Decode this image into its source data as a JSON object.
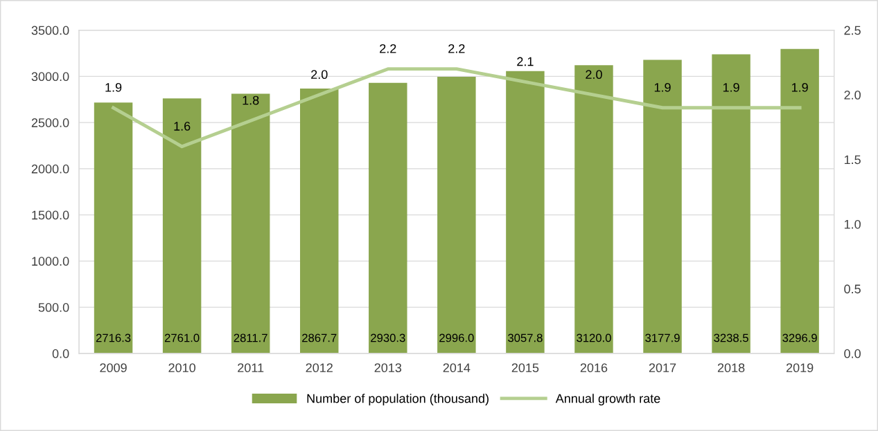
{
  "chart_data": {
    "type": "bar",
    "categories": [
      "2009",
      "2010",
      "2011",
      "2012",
      "2013",
      "2014",
      "2015",
      "2016",
      "2017",
      "2018",
      "2019"
    ],
    "series": [
      {
        "name": "Number of population (thousand)",
        "color": "#8aa64e",
        "values": [
          2716.3,
          2761.0,
          2811.7,
          2867.7,
          2930.3,
          2996.0,
          3057.8,
          3120.0,
          3177.9,
          3238.5,
          3296.9
        ],
        "value_labels": [
          "2716.3",
          "2761.0",
          "2811.7",
          "2867.7",
          "2930.3",
          "2996.0",
          "3057.8",
          "3120.0",
          "3177.9",
          "3238.5",
          "3296.9"
        ]
      },
      {
        "name": "Annual growth rate",
        "type": "line",
        "axis": "y2",
        "color": "#b5cf90",
        "values": [
          1.9,
          1.6,
          1.8,
          2.0,
          2.2,
          2.2,
          2.1,
          2.0,
          1.9,
          1.9,
          1.9
        ],
        "value_labels": [
          "1.9",
          "1.6",
          "1.8",
          "2.0",
          "2.2",
          "2.2",
          "2.1",
          "2.0",
          "1.9",
          "1.9",
          "1.9"
        ]
      }
    ],
    "ylim": [
      0,
      3500
    ],
    "yticks": [
      {
        "value": 0,
        "label": "0.0"
      },
      {
        "value": 500,
        "label": "500.0"
      },
      {
        "value": 1000,
        "label": "1000.0"
      },
      {
        "value": 1500,
        "label": "1500.0"
      },
      {
        "value": 2000,
        "label": "2000.0"
      },
      {
        "value": 2500,
        "label": "2500.0"
      },
      {
        "value": 3000,
        "label": "3000.0"
      },
      {
        "value": 3500,
        "label": "3500.0"
      }
    ],
    "y2lim": [
      0,
      2.5
    ],
    "y2ticks": [
      {
        "value": 0,
        "label": "0.0"
      },
      {
        "value": 0.5,
        "label": "0.5"
      },
      {
        "value": 1.0,
        "label": "1.0"
      },
      {
        "value": 1.5,
        "label": "1.5"
      },
      {
        "value": 2.0,
        "label": "2.0"
      },
      {
        "value": 2.5,
        "label": "2.5"
      }
    ],
    "grid": "y",
    "legend": "bottom"
  }
}
